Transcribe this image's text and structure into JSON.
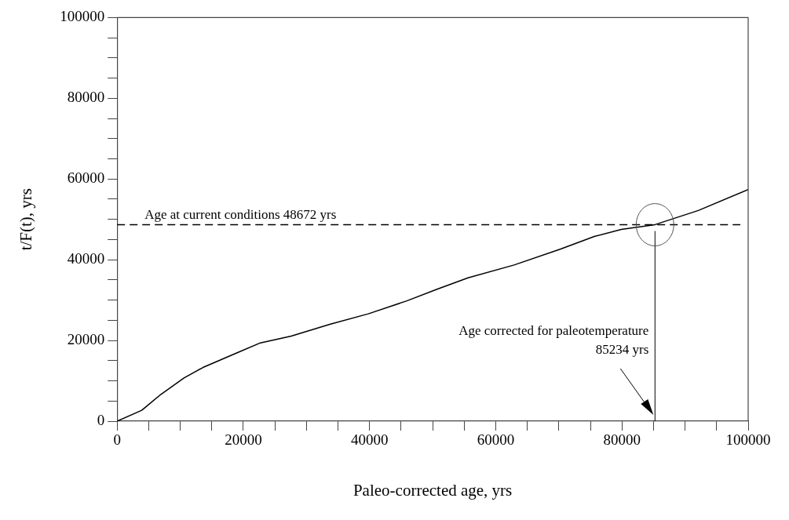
{
  "chart_data": {
    "type": "line",
    "xlabel": "Paleo-corrected age, yrs",
    "ylabel": "t/F(t), yrs",
    "x": [
      0,
      3900,
      6900,
      10600,
      13600,
      19100,
      22700,
      27600,
      33700,
      39800,
      45900,
      50700,
      55600,
      62900,
      70200,
      75700,
      79900,
      85234,
      92100,
      100000
    ],
    "series": [
      {
        "color": "#000000",
        "values": [
          0,
          2700,
          6600,
          10700,
          13300,
          17000,
          19400,
          21100,
          24000,
          26600,
          29800,
          32700,
          35500,
          38700,
          42600,
          45800,
          47500,
          48700,
          52200,
          57400
        ]
      }
    ],
    "xlim": [
      0,
      100000
    ],
    "ylim": [
      0,
      100000
    ],
    "xticks": [
      0,
      {
        "value": 5000,
        "label": null
      },
      {
        "value": 10000,
        "label": null
      },
      {
        "value": 15000,
        "label": null
      },
      20000,
      {
        "value": 25000,
        "label": null
      },
      {
        "value": 30000,
        "label": null
      },
      {
        "value": 35000,
        "label": null
      },
      40000,
      {
        "value": 45000,
        "label": null
      },
      {
        "value": 50000,
        "label": null
      },
      {
        "value": 55000,
        "label": null
      },
      60000,
      {
        "value": 65000,
        "label": null
      },
      {
        "value": 70000,
        "label": null
      },
      {
        "value": 75000,
        "label": null
      },
      80000,
      {
        "value": 85000,
        "label": null
      },
      {
        "value": 90000,
        "label": null
      },
      {
        "value": 95000,
        "label": null
      },
      100000
    ],
    "yticks": [
      0,
      {
        "value": 5000,
        "label": null
      },
      {
        "value": 10000,
        "label": null
      },
      {
        "value": 15000,
        "label": null
      },
      20000,
      {
        "value": 25000,
        "label": null
      },
      {
        "value": 30000,
        "label": null
      },
      {
        "value": 35000,
        "label": null
      },
      40000,
      {
        "value": 45000,
        "label": null
      },
      {
        "value": 50000,
        "label": null
      },
      {
        "value": 55000,
        "label": null
      },
      60000,
      {
        "value": 65000,
        "label": null
      },
      {
        "value": 70000,
        "label": null
      },
      {
        "value": 75000,
        "label": null
      },
      80000,
      {
        "value": 85000,
        "label": null
      },
      {
        "value": 90000,
        "label": null
      },
      {
        "value": 95000,
        "label": null
      },
      100000
    ],
    "grid": false,
    "marker": "none",
    "line_style": "solid",
    "ref_lines": [
      {
        "axis": "y",
        "value": 48672,
        "label": "Age at current conditions 48672 yrs",
        "color": "#000000",
        "line_style": "dashed"
      },
      {
        "axis": "x",
        "value": 85234,
        "label": "Age corrected for paleotemperature\n85234 yrs",
        "color": "#000000",
        "line_style": "solid"
      }
    ]
  }
}
